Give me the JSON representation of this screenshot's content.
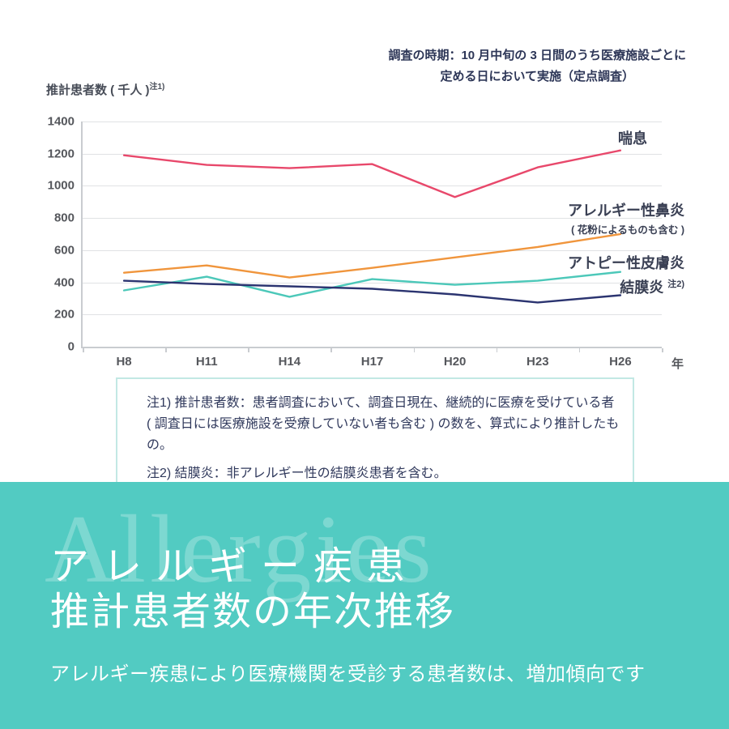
{
  "annotation": {
    "line1": "調査の時期：10 月中旬の 3 日間のうち医療施設ごとに",
    "line2": "定める日において実施（定点調査）"
  },
  "y_axis_title": {
    "text": "推計患者数 ( 千人 )",
    "superscript": "注1)"
  },
  "chart_data": {
    "type": "line",
    "categories": [
      "H8",
      "H11",
      "H14",
      "H17",
      "H20",
      "H23",
      "H26"
    ],
    "x_unit": "年",
    "ylim": [
      0,
      1400
    ],
    "ytick_step": 200,
    "grid": true,
    "legend_position": "right-of-lines",
    "series": [
      {
        "name": "喘息",
        "color": "#e8486b",
        "values": [
          1190,
          1130,
          1110,
          1135,
          930,
          1115,
          1220
        ]
      },
      {
        "name": "アレルギー性鼻炎",
        "sublabel": "( 花粉によるものも含む )",
        "color": "#f0953c",
        "values": [
          460,
          505,
          430,
          490,
          555,
          620,
          700
        ]
      },
      {
        "name": "アトピー性皮膚炎",
        "color": "#4cc8b9",
        "values": [
          350,
          435,
          310,
          420,
          385,
          410,
          465
        ]
      },
      {
        "name": "結膜炎",
        "note_ref": "注2)",
        "color": "#2b3470",
        "values": [
          410,
          390,
          375,
          360,
          325,
          275,
          320
        ]
      }
    ]
  },
  "notes": {
    "line1": "注1) 推計患者数：患者調査において、調査日現在、継続的に医療を受けている者",
    "line2": "( 調査日には医療施設を受療していない者も含む ) の数を、算式により推計したもの。",
    "line3": "注2) 結膜炎：非アレルギー性の結膜炎患者を含む。"
  },
  "footer": {
    "watermark": "Allergies",
    "title_line1": "アレルギー疾患",
    "title_line2": "推計患者数の年次推移",
    "subtitle": "アレルギー疾患により医療機関を受診する患者数は、増加傾向です",
    "band_color": "#52cbc2"
  }
}
